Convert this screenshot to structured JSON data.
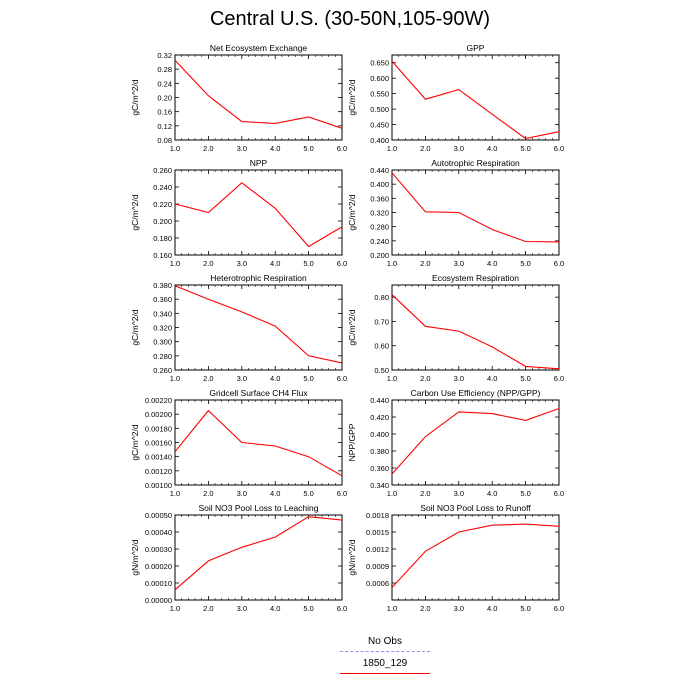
{
  "title": "Central U.S. (30-50N,105-90W)",
  "colors": {
    "model": "#ff0000",
    "obs": "#8c8cff"
  },
  "legend": [
    {
      "label": "No Obs",
      "color": "#8c8cff",
      "style": "dashed"
    },
    {
      "label": "1850_129",
      "color": "#ff0000",
      "style": "solid"
    }
  ],
  "chart_data": [
    {
      "type": "line",
      "title": "Net Ecosystem Exchange",
      "ylabel": "gC/m^2/d",
      "x": [
        1,
        2,
        3,
        4,
        5,
        6
      ],
      "xlim": [
        1,
        6
      ],
      "xticks": [
        "1.0",
        "2.0",
        "3.0",
        "4.0",
        "5.0",
        "6.0"
      ],
      "ylim": [
        0.08,
        0.32
      ],
      "yticks": [
        "0.08",
        "0.12",
        "0.16",
        "0.20",
        "0.24",
        "0.28",
        "0.32"
      ],
      "series": [
        {
          "values": [
            0.305,
            0.205,
            0.132,
            0.127,
            0.145,
            0.113
          ]
        }
      ]
    },
    {
      "type": "line",
      "title": "GPP",
      "ylabel": "gC/m^2/d",
      "x": [
        1,
        2,
        3,
        4,
        5,
        6
      ],
      "xlim": [
        1,
        6
      ],
      "xticks": [
        "1.0",
        "2.0",
        "3.0",
        "4.0",
        "5.0",
        "6.0"
      ],
      "ylim": [
        0.4,
        0.675
      ],
      "yticks": [
        "0.400",
        "0.450",
        "0.500",
        "0.550",
        "0.600",
        "0.650"
      ],
      "series": [
        {
          "values": [
            0.655,
            0.532,
            0.563,
            0.483,
            0.405,
            0.427
          ]
        }
      ]
    },
    {
      "type": "line",
      "title": "NPP",
      "ylabel": "gC/m^2/d",
      "x": [
        1,
        2,
        3,
        4,
        5,
        6
      ],
      "xlim": [
        1,
        6
      ],
      "xticks": [
        "1.0",
        "2.0",
        "3.0",
        "4.0",
        "5.0",
        "6.0"
      ],
      "ylim": [
        0.16,
        0.26
      ],
      "yticks": [
        "0.160",
        "0.180",
        "0.200",
        "0.220",
        "0.240",
        "0.260"
      ],
      "series": [
        {
          "values": [
            0.22,
            0.21,
            0.245,
            0.215,
            0.17,
            0.193
          ]
        }
      ]
    },
    {
      "type": "line",
      "title": "Autotrophic Respiration",
      "ylabel": "gC/m^2/d",
      "x": [
        1,
        2,
        3,
        4,
        5,
        6
      ],
      "xlim": [
        1,
        6
      ],
      "xticks": [
        "1.0",
        "2.0",
        "3.0",
        "4.0",
        "5.0",
        "6.0"
      ],
      "ylim": [
        0.2,
        0.44
      ],
      "yticks": [
        "0.200",
        "0.240",
        "0.280",
        "0.320",
        "0.360",
        "0.400",
        "0.440"
      ],
      "series": [
        {
          "values": [
            0.432,
            0.322,
            0.32,
            0.272,
            0.238,
            0.237
          ]
        }
      ]
    },
    {
      "type": "line",
      "title": "Heterotrophic Respiration",
      "ylabel": "gC/m^2/d",
      "x": [
        1,
        2,
        3,
        4,
        5,
        6
      ],
      "xlim": [
        1,
        6
      ],
      "xticks": [
        "1.0",
        "2.0",
        "3.0",
        "4.0",
        "5.0",
        "6.0"
      ],
      "ylim": [
        0.26,
        0.38
      ],
      "yticks": [
        "0.260",
        "0.280",
        "0.300",
        "0.320",
        "0.340",
        "0.360",
        "0.380"
      ],
      "series": [
        {
          "values": [
            0.379,
            0.36,
            0.342,
            0.322,
            0.28,
            0.27
          ]
        }
      ]
    },
    {
      "type": "line",
      "title": "Ecosystem Respiration",
      "ylabel": "gC/m^2/d",
      "x": [
        1,
        2,
        3,
        4,
        5,
        6
      ],
      "xlim": [
        1,
        6
      ],
      "xticks": [
        "1.0",
        "2.0",
        "3.0",
        "4.0",
        "5.0",
        "6.0"
      ],
      "ylim": [
        0.5,
        0.85
      ],
      "yticks": [
        "0.50",
        "0.60",
        "0.70",
        "0.80"
      ],
      "series": [
        {
          "values": [
            0.81,
            0.68,
            0.66,
            0.595,
            0.515,
            0.505
          ]
        }
      ]
    },
    {
      "type": "line",
      "title": "Gridcell Surface CH4 Flux",
      "ylabel": "gC/m^2/d",
      "x": [
        1,
        2,
        3,
        4,
        5,
        6
      ],
      "xlim": [
        1,
        6
      ],
      "xticks": [
        "1.0",
        "2.0",
        "3.0",
        "4.0",
        "5.0",
        "6.0"
      ],
      "ylim": [
        0.001,
        0.0022
      ],
      "yticks": [
        "0.00100",
        "0.00120",
        "0.00140",
        "0.00160",
        "0.00180",
        "0.00200",
        "0.00220"
      ],
      "series": [
        {
          "values": [
            0.00147,
            0.00205,
            0.0016,
            0.00155,
            0.0014,
            0.00113
          ]
        }
      ]
    },
    {
      "type": "line",
      "title": "Carbon Use Efficiency (NPP/GPP)",
      "ylabel": "NPP/GPP",
      "x": [
        1,
        2,
        3,
        4,
        5,
        6
      ],
      "xlim": [
        1,
        6
      ],
      "xticks": [
        "1.0",
        "2.0",
        "3.0",
        "4.0",
        "5.0",
        "6.0"
      ],
      "ylim": [
        0.34,
        0.44
      ],
      "yticks": [
        "0.340",
        "0.360",
        "0.380",
        "0.400",
        "0.420",
        "0.440"
      ],
      "series": [
        {
          "values": [
            0.353,
            0.397,
            0.426,
            0.424,
            0.416,
            0.43
          ]
        }
      ]
    },
    {
      "type": "line",
      "title": "Soil NO3 Pool Loss to Leaching",
      "ylabel": "gN/m^2/d",
      "x": [
        1,
        2,
        3,
        4,
        5,
        6
      ],
      "xlim": [
        1,
        6
      ],
      "xticks": [
        "1.0",
        "2.0",
        "3.0",
        "4.0",
        "5.0",
        "6.0"
      ],
      "ylim": [
        0,
        0.0005
      ],
      "yticks": [
        "0.00000",
        "0.00010",
        "0.00020",
        "0.00030",
        "0.00040",
        "0.00050"
      ],
      "series": [
        {
          "values": [
            6e-05,
            0.00023,
            0.00031,
            0.00037,
            0.00049,
            0.00047
          ]
        }
      ]
    },
    {
      "type": "line",
      "title": "Soil NO3 Pool Loss to Runoff",
      "ylabel": "gN/m^2/d",
      "x": [
        1,
        2,
        3,
        4,
        5,
        6
      ],
      "xlim": [
        1,
        6
      ],
      "xticks": [
        "1.0",
        "2.0",
        "3.0",
        "4.0",
        "5.0",
        "6.0"
      ],
      "ylim": [
        0.0003,
        0.0018
      ],
      "yticks": [
        "0.0006",
        "0.0009",
        "0.0012",
        "0.0015",
        "0.0018"
      ],
      "series": [
        {
          "values": [
            0.00052,
            0.00116,
            0.0015,
            0.00162,
            0.00164,
            0.0016
          ]
        }
      ]
    }
  ]
}
